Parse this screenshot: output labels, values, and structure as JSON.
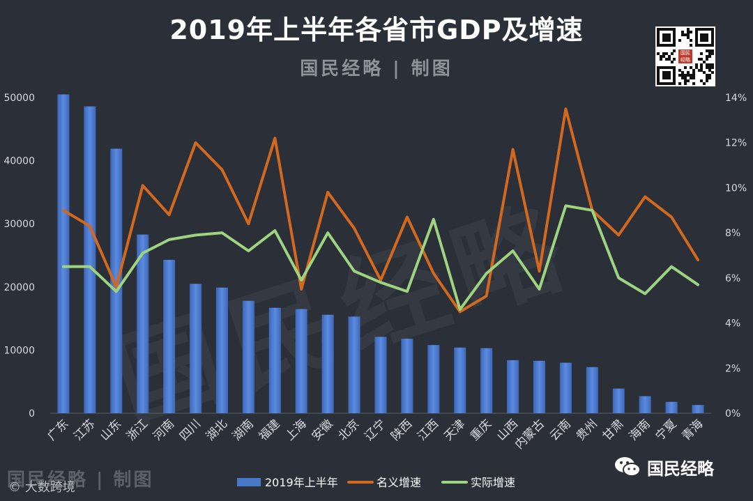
{
  "header": {
    "title": "2019年上半年各省市GDP及增速",
    "subtitle": "国民经略 | 制图"
  },
  "footer": {
    "mark": "国民经略 | 制图",
    "source": "© 大数跨境",
    "wechat_name": "国民经略"
  },
  "watermark_text": "国民经略",
  "colors": {
    "background": "#2a2f38",
    "bar": "#4a78c8",
    "nominal": "#d2691e",
    "real": "#9ed47f",
    "axis_text": "#d8dae0"
  },
  "chart_data": {
    "type": "bar",
    "categories": [
      "广东",
      "江苏",
      "山东",
      "浙江",
      "河南",
      "四川",
      "湖北",
      "湖南",
      "福建",
      "上海",
      "安徽",
      "北京",
      "辽宁",
      "陕西",
      "江西",
      "天津",
      "重庆",
      "山西",
      "内蒙古",
      "云南",
      "贵州",
      "甘肃",
      "海南",
      "宁夏",
      "青海"
    ],
    "series": [
      {
        "name": "2019年上半年",
        "type": "bar",
        "axis": "left",
        "values": [
          50500,
          48600,
          41900,
          28300,
          24300,
          20500,
          19900,
          17800,
          16700,
          16500,
          15600,
          15300,
          12100,
          11800,
          10800,
          10400,
          10300,
          8400,
          8300,
          8000,
          7300,
          3900,
          2700,
          1800,
          1300
        ]
      },
      {
        "name": "名义增速",
        "type": "line",
        "axis": "right",
        "values": [
          9.0,
          8.3,
          5.6,
          10.1,
          8.8,
          12.0,
          10.8,
          8.4,
          12.2,
          5.5,
          9.8,
          8.2,
          5.9,
          8.7,
          6.2,
          4.5,
          5.2,
          11.7,
          6.3,
          13.5,
          9.0,
          7.9,
          9.6,
          8.7,
          6.8
        ]
      },
      {
        "name": "实际增速",
        "type": "line",
        "axis": "right",
        "values": [
          6.5,
          6.5,
          5.4,
          7.1,
          7.7,
          7.9,
          8.0,
          7.2,
          8.1,
          5.9,
          8.0,
          6.3,
          5.8,
          5.4,
          8.6,
          4.6,
          6.2,
          7.2,
          5.5,
          9.2,
          9.0,
          6.0,
          5.3,
          6.5,
          5.7
        ]
      }
    ],
    "yleft": {
      "ticks": [
        "0",
        "10000",
        "20000",
        "30000",
        "40000",
        "50000"
      ],
      "lim": [
        0,
        50000
      ]
    },
    "yright": {
      "ticks": [
        "0%",
        "2%",
        "4%",
        "6%",
        "8%",
        "10%",
        "12%",
        "14%"
      ],
      "lim": [
        0,
        14
      ]
    },
    "legend": {
      "placement": "bottom",
      "items": [
        "2019年上半年",
        "名义增速",
        "实际增速"
      ]
    }
  }
}
